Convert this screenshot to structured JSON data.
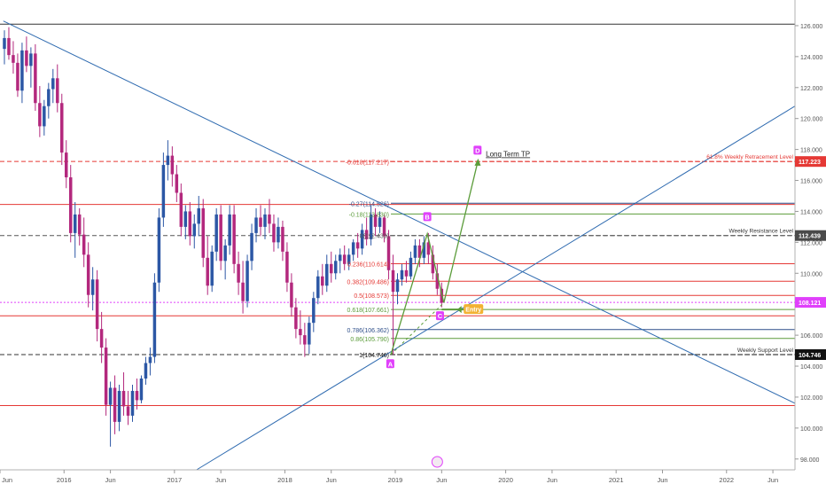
{
  "chart_data": {
    "type": "candlestick",
    "x_ticks": [
      "Jun",
      "2016",
      "Jun",
      "2017",
      "Jun",
      "2018",
      "Jun",
      "2019",
      "Jun",
      "2020",
      "Jun",
      "2021",
      "Jun",
      "2022",
      "Jun"
    ],
    "y_ticks": [
      "98.000",
      "100.000",
      "102.000",
      "104.000",
      "106.000",
      "108.000",
      "110.000",
      "112.000",
      "114.000",
      "116.000",
      "118.000",
      "120.000",
      "122.000",
      "124.000",
      "126.000"
    ],
    "ylim": [
      97.3,
      127.2
    ],
    "xlim": [
      2015.42,
      2022.62
    ],
    "colors": {
      "up": "#2c57a5",
      "down": "#b3287d",
      "trend": "#2f6bb0",
      "red": "#e53935",
      "green": "#5b9c3a",
      "pink": "#e040fb"
    },
    "price_badges": [
      {
        "value": "117.223",
        "y": 117.223,
        "bg": "#e53935"
      },
      {
        "value": "112.439",
        "y": 112.439,
        "bg": "#4a4a4a"
      },
      {
        "value": "108.121",
        "y": 108.121,
        "bg": "#e040fb"
      },
      {
        "value": "104.746",
        "y": 104.746,
        "bg": "#111111"
      }
    ],
    "fib_levels": [
      {
        "label": "-0.618(117.217)",
        "y": 117.217,
        "color": "#e53935",
        "dashed": true
      },
      {
        "label": "-0.27(114.526)",
        "y": 114.526,
        "color": "#2f4f8a",
        "dashed": false
      },
      {
        "label": "-0.18(113.830)",
        "y": 113.83,
        "color": "#5b9c3a",
        "dashed": false
      },
      {
        "label": "0(112.439)",
        "y": 112.439,
        "color": "#555555",
        "dashed": true
      },
      {
        "label": "0.236(110.614)",
        "y": 110.614,
        "color": "#e53935",
        "dashed": false
      },
      {
        "label": "0.382(109.486)",
        "y": 109.486,
        "color": "#e53935",
        "dashed": false
      },
      {
        "label": "0.5(108.573)",
        "y": 108.573,
        "color": "#e53935",
        "dashed": false
      },
      {
        "label": "0.618(107.661)",
        "y": 107.661,
        "color": "#5b9c3a",
        "dashed": false
      },
      {
        "label": "0.786(106.362)",
        "y": 106.362,
        "color": "#2f4f8a",
        "dashed": false
      },
      {
        "label": "0.86(105.790)",
        "y": 105.79,
        "color": "#5b9c3a",
        "dashed": false
      },
      {
        "label": "1(104.746)",
        "y": 104.746,
        "color": "#111111",
        "dashed": true
      }
    ],
    "horizontal_levels": [
      {
        "y": 126.1,
        "color": "#333333",
        "dashed": false
      },
      {
        "y": 117.223,
        "color": "#e53935",
        "dashed": true
      },
      {
        "y": 114.45,
        "color": "#e53935",
        "dashed": false
      },
      {
        "y": 112.439,
        "color": "#555555",
        "dashed": true
      },
      {
        "y": 107.25,
        "color": "#e53935",
        "dashed": false
      },
      {
        "y": 104.746,
        "color": "#333333",
        "dashed": true
      },
      {
        "y": 101.45,
        "color": "#e53935",
        "dashed": false
      }
    ],
    "level_labels": [
      {
        "text": "61.8% Weekly Retracement Level",
        "y": 117.223,
        "color": "#e53935"
      },
      {
        "text": "Weekly Resistance Level",
        "y": 112.439,
        "color": "#333333"
      },
      {
        "text": "Weekly Support Level",
        "y": 104.746,
        "color": "#333333"
      }
    ],
    "trendlines": [
      {
        "x1": 2015.45,
        "y1": 126.3,
        "x2": 2022.62,
        "y2": 101.6
      },
      {
        "x1": 2017.2,
        "y1": 97.3,
        "x2": 2022.62,
        "y2": 120.8
      }
    ],
    "pattern_points": [
      {
        "label": "A",
        "x": 2018.96,
        "y": 104.75,
        "lx": 2018.955,
        "ly": 104.1
      },
      {
        "label": "B",
        "x": 2019.29,
        "y": 112.55,
        "lx": 2019.29,
        "ly": 113.6
      },
      {
        "label": "C",
        "x": 2019.44,
        "y": 108.1,
        "lx": 2019.405,
        "ly": 107.2
      },
      {
        "label": "D",
        "x": 2019.75,
        "y": 117.3,
        "lx": 2019.745,
        "ly": 117.9
      }
    ],
    "annotations": {
      "target": "Long Term TP",
      "entry": "Entry",
      "pink_line": 108.121
    },
    "candles": [
      {
        "x": 2015.46,
        "o": 124.5,
        "h": 125.7,
        "l": 123.5,
        "c": 125.2
      },
      {
        "x": 2015.5,
        "o": 125.2,
        "h": 125.9,
        "l": 123.8,
        "c": 124.1
      },
      {
        "x": 2015.54,
        "o": 124.1,
        "h": 125.0,
        "l": 122.9,
        "c": 123.6
      },
      {
        "x": 2015.58,
        "o": 123.6,
        "h": 124.2,
        "l": 121.4,
        "c": 121.8
      },
      {
        "x": 2015.62,
        "o": 121.8,
        "h": 124.9,
        "l": 121.0,
        "c": 124.4
      },
      {
        "x": 2015.66,
        "o": 124.4,
        "h": 125.3,
        "l": 123.0,
        "c": 123.4
      },
      {
        "x": 2015.7,
        "o": 123.4,
        "h": 124.6,
        "l": 122.0,
        "c": 124.2
      },
      {
        "x": 2015.74,
        "o": 124.2,
        "h": 124.8,
        "l": 120.5,
        "c": 121.0
      },
      {
        "x": 2015.78,
        "o": 121.0,
        "h": 122.1,
        "l": 118.8,
        "c": 119.5
      },
      {
        "x": 2015.82,
        "o": 119.5,
        "h": 121.2,
        "l": 118.9,
        "c": 120.8
      },
      {
        "x": 2015.86,
        "o": 120.8,
        "h": 122.3,
        "l": 120.0,
        "c": 121.9
      },
      {
        "x": 2015.9,
        "o": 121.9,
        "h": 123.2,
        "l": 121.0,
        "c": 122.6
      },
      {
        "x": 2015.94,
        "o": 122.6,
        "h": 123.5,
        "l": 120.4,
        "c": 121.0
      },
      {
        "x": 2015.98,
        "o": 121.0,
        "h": 121.6,
        "l": 117.0,
        "c": 117.8
      },
      {
        "x": 2016.02,
        "o": 117.8,
        "h": 118.6,
        "l": 115.5,
        "c": 116.2
      },
      {
        "x": 2016.06,
        "o": 116.2,
        "h": 117.0,
        "l": 112.0,
        "c": 112.6
      },
      {
        "x": 2016.1,
        "o": 112.6,
        "h": 114.6,
        "l": 111.0,
        "c": 113.8
      },
      {
        "x": 2016.14,
        "o": 113.8,
        "h": 114.2,
        "l": 111.8,
        "c": 112.5
      },
      {
        "x": 2016.18,
        "o": 112.5,
        "h": 113.6,
        "l": 110.4,
        "c": 111.2
      },
      {
        "x": 2016.22,
        "o": 111.2,
        "h": 112.0,
        "l": 107.8,
        "c": 108.6
      },
      {
        "x": 2016.26,
        "o": 108.6,
        "h": 110.4,
        "l": 107.6,
        "c": 109.6
      },
      {
        "x": 2016.3,
        "o": 109.6,
        "h": 110.2,
        "l": 105.6,
        "c": 106.4
      },
      {
        "x": 2016.34,
        "o": 106.4,
        "h": 107.5,
        "l": 104.2,
        "c": 105.2
      },
      {
        "x": 2016.38,
        "o": 105.2,
        "h": 105.8,
        "l": 100.8,
        "c": 101.5
      },
      {
        "x": 2016.42,
        "o": 101.5,
        "h": 103.0,
        "l": 98.8,
        "c": 102.6
      },
      {
        "x": 2016.46,
        "o": 102.6,
        "h": 103.4,
        "l": 99.6,
        "c": 100.4
      },
      {
        "x": 2016.5,
        "o": 100.4,
        "h": 102.8,
        "l": 99.8,
        "c": 102.4
      },
      {
        "x": 2016.54,
        "o": 102.4,
        "h": 103.6,
        "l": 100.8,
        "c": 101.4
      },
      {
        "x": 2016.58,
        "o": 101.4,
        "h": 102.4,
        "l": 100.2,
        "c": 100.8
      },
      {
        "x": 2016.62,
        "o": 100.8,
        "h": 102.8,
        "l": 100.4,
        "c": 102.4
      },
      {
        "x": 2016.66,
        "o": 102.4,
        "h": 103.2,
        "l": 101.2,
        "c": 101.8
      },
      {
        "x": 2016.7,
        "o": 101.8,
        "h": 103.4,
        "l": 101.6,
        "c": 103.2
      },
      {
        "x": 2016.74,
        "o": 103.2,
        "h": 104.6,
        "l": 102.8,
        "c": 104.2
      },
      {
        "x": 2016.78,
        "o": 104.2,
        "h": 105.2,
        "l": 103.4,
        "c": 104.6
      },
      {
        "x": 2016.82,
        "o": 104.6,
        "h": 110.0,
        "l": 104.2,
        "c": 109.4
      },
      {
        "x": 2016.86,
        "o": 109.4,
        "h": 114.2,
        "l": 108.8,
        "c": 113.6
      },
      {
        "x": 2016.9,
        "o": 113.6,
        "h": 117.8,
        "l": 113.0,
        "c": 117.0
      },
      {
        "x": 2016.94,
        "o": 117.0,
        "h": 118.6,
        "l": 116.0,
        "c": 117.6
      },
      {
        "x": 2016.98,
        "o": 117.6,
        "h": 118.2,
        "l": 115.6,
        "c": 116.4
      },
      {
        "x": 2017.02,
        "o": 116.4,
        "h": 117.0,
        "l": 114.6,
        "c": 115.2
      },
      {
        "x": 2017.06,
        "o": 115.2,
        "h": 115.8,
        "l": 112.4,
        "c": 113.0
      },
      {
        "x": 2017.1,
        "o": 113.0,
        "h": 114.4,
        "l": 112.2,
        "c": 114.0
      },
      {
        "x": 2017.14,
        "o": 114.0,
        "h": 114.6,
        "l": 111.8,
        "c": 112.4
      },
      {
        "x": 2017.18,
        "o": 112.4,
        "h": 113.8,
        "l": 111.6,
        "c": 113.2
      },
      {
        "x": 2017.22,
        "o": 113.2,
        "h": 115.0,
        "l": 112.4,
        "c": 114.2
      },
      {
        "x": 2017.26,
        "o": 114.2,
        "h": 114.8,
        "l": 110.4,
        "c": 111.0
      },
      {
        "x": 2017.3,
        "o": 111.0,
        "h": 112.4,
        "l": 108.6,
        "c": 109.2
      },
      {
        "x": 2017.34,
        "o": 109.2,
        "h": 111.8,
        "l": 108.8,
        "c": 111.4
      },
      {
        "x": 2017.38,
        "o": 111.4,
        "h": 114.2,
        "l": 110.8,
        "c": 113.8
      },
      {
        "x": 2017.42,
        "o": 113.8,
        "h": 114.4,
        "l": 110.2,
        "c": 110.8
      },
      {
        "x": 2017.46,
        "o": 110.8,
        "h": 112.2,
        "l": 109.6,
        "c": 111.8
      },
      {
        "x": 2017.5,
        "o": 111.8,
        "h": 114.4,
        "l": 111.2,
        "c": 113.8
      },
      {
        "x": 2017.54,
        "o": 113.8,
        "h": 114.4,
        "l": 110.0,
        "c": 110.6
      },
      {
        "x": 2017.58,
        "o": 110.6,
        "h": 111.4,
        "l": 108.6,
        "c": 109.4
      },
      {
        "x": 2017.62,
        "o": 109.4,
        "h": 110.8,
        "l": 107.4,
        "c": 108.2
      },
      {
        "x": 2017.66,
        "o": 108.2,
        "h": 111.2,
        "l": 107.8,
        "c": 110.8
      },
      {
        "x": 2017.7,
        "o": 110.8,
        "h": 113.2,
        "l": 110.2,
        "c": 112.6
      },
      {
        "x": 2017.74,
        "o": 112.6,
        "h": 114.2,
        "l": 112.0,
        "c": 113.6
      },
      {
        "x": 2017.78,
        "o": 113.6,
        "h": 114.4,
        "l": 112.4,
        "c": 113.0
      },
      {
        "x": 2017.82,
        "o": 113.0,
        "h": 114.2,
        "l": 112.2,
        "c": 113.8
      },
      {
        "x": 2017.86,
        "o": 113.8,
        "h": 114.8,
        "l": 112.6,
        "c": 113.2
      },
      {
        "x": 2017.9,
        "o": 113.2,
        "h": 113.8,
        "l": 111.4,
        "c": 112.0
      },
      {
        "x": 2017.94,
        "o": 112.0,
        "h": 113.6,
        "l": 111.6,
        "c": 113.0
      },
      {
        "x": 2017.98,
        "o": 113.0,
        "h": 113.4,
        "l": 110.8,
        "c": 111.4
      },
      {
        "x": 2018.02,
        "o": 111.4,
        "h": 112.0,
        "l": 108.8,
        "c": 109.4
      },
      {
        "x": 2018.06,
        "o": 109.4,
        "h": 110.0,
        "l": 107.2,
        "c": 107.8
      },
      {
        "x": 2018.1,
        "o": 107.8,
        "h": 108.4,
        "l": 105.8,
        "c": 106.4
      },
      {
        "x": 2018.14,
        "o": 106.4,
        "h": 107.6,
        "l": 105.4,
        "c": 106.0
      },
      {
        "x": 2018.18,
        "o": 106.0,
        "h": 106.8,
        "l": 104.6,
        "c": 105.4
      },
      {
        "x": 2018.22,
        "o": 105.4,
        "h": 107.2,
        "l": 104.8,
        "c": 106.8
      },
      {
        "x": 2018.26,
        "o": 106.8,
        "h": 108.8,
        "l": 106.2,
        "c": 108.4
      },
      {
        "x": 2018.3,
        "o": 108.4,
        "h": 110.2,
        "l": 108.0,
        "c": 109.8
      },
      {
        "x": 2018.34,
        "o": 109.8,
        "h": 110.6,
        "l": 108.6,
        "c": 109.2
      },
      {
        "x": 2018.38,
        "o": 109.2,
        "h": 111.2,
        "l": 108.8,
        "c": 110.6
      },
      {
        "x": 2018.42,
        "o": 110.6,
        "h": 111.4,
        "l": 109.4,
        "c": 110.0
      },
      {
        "x": 2018.46,
        "o": 110.0,
        "h": 111.2,
        "l": 109.6,
        "c": 110.8
      },
      {
        "x": 2018.5,
        "o": 110.8,
        "h": 111.6,
        "l": 110.0,
        "c": 111.2
      },
      {
        "x": 2018.54,
        "o": 111.2,
        "h": 111.8,
        "l": 110.2,
        "c": 110.6
      },
      {
        "x": 2018.58,
        "o": 110.6,
        "h": 111.6,
        "l": 110.2,
        "c": 111.2
      },
      {
        "x": 2018.62,
        "o": 111.2,
        "h": 112.2,
        "l": 110.8,
        "c": 112.0
      },
      {
        "x": 2018.66,
        "o": 112.0,
        "h": 112.6,
        "l": 111.0,
        "c": 111.6
      },
      {
        "x": 2018.7,
        "o": 111.6,
        "h": 113.2,
        "l": 111.2,
        "c": 112.8
      },
      {
        "x": 2018.74,
        "o": 112.8,
        "h": 113.6,
        "l": 111.8,
        "c": 112.2
      },
      {
        "x": 2018.78,
        "o": 112.2,
        "h": 114.4,
        "l": 111.8,
        "c": 113.8
      },
      {
        "x": 2018.82,
        "o": 113.8,
        "h": 114.2,
        "l": 112.4,
        "c": 113.0
      },
      {
        "x": 2018.86,
        "o": 113.0,
        "h": 114.0,
        "l": 112.6,
        "c": 113.6
      },
      {
        "x": 2018.9,
        "o": 113.6,
        "h": 113.8,
        "l": 112.0,
        "c": 112.4
      },
      {
        "x": 2018.94,
        "o": 112.4,
        "h": 112.8,
        "l": 109.6,
        "c": 110.2
      },
      {
        "x": 2018.98,
        "o": 110.2,
        "h": 111.2,
        "l": 104.75,
        "c": 108.8
      },
      {
        "x": 2019.02,
        "o": 108.8,
        "h": 110.0,
        "l": 108.0,
        "c": 109.6
      },
      {
        "x": 2019.06,
        "o": 109.6,
        "h": 110.6,
        "l": 109.2,
        "c": 110.2
      },
      {
        "x": 2019.1,
        "o": 110.2,
        "h": 110.8,
        "l": 109.4,
        "c": 109.8
      },
      {
        "x": 2019.14,
        "o": 109.8,
        "h": 111.4,
        "l": 109.6,
        "c": 111.0
      },
      {
        "x": 2019.18,
        "o": 111.0,
        "h": 112.2,
        "l": 110.6,
        "c": 111.8
      },
      {
        "x": 2019.22,
        "o": 111.8,
        "h": 112.2,
        "l": 110.4,
        "c": 111.0
      },
      {
        "x": 2019.26,
        "o": 111.0,
        "h": 112.4,
        "l": 110.6,
        "c": 112.0
      },
      {
        "x": 2019.3,
        "o": 112.0,
        "h": 112.6,
        "l": 110.6,
        "c": 111.2
      },
      {
        "x": 2019.34,
        "o": 111.2,
        "h": 111.8,
        "l": 109.6,
        "c": 110.0
      },
      {
        "x": 2019.38,
        "o": 110.0,
        "h": 110.6,
        "l": 108.6,
        "c": 109.0
      },
      {
        "x": 2019.42,
        "o": 109.0,
        "h": 109.4,
        "l": 107.8,
        "c": 108.1
      }
    ]
  }
}
